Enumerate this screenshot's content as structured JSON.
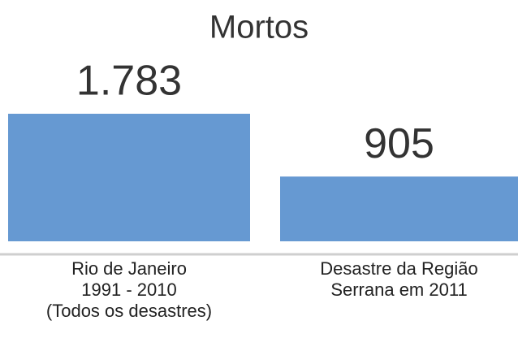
{
  "chart_data": {
    "type": "bar",
    "title": "Mortos",
    "categories": [
      "Rio de Janeiro\n1991 - 2010\n(Todos os desastres)",
      "Desastre da Região\nSerrana em 2011"
    ],
    "values": [
      1783,
      905
    ],
    "value_labels": [
      "1.783",
      "905"
    ],
    "color": "#6699d2"
  }
}
